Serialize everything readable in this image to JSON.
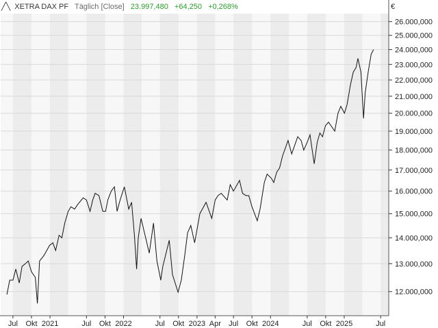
{
  "header": {
    "name": "XETRA DAX PF",
    "mode": "Täglich [Close]",
    "last": "23.997,480",
    "change": "+64,250",
    "change_pct": "+0,268%"
  },
  "colors": {
    "line": "#111111",
    "positive": "#2e9b2e",
    "band_light": "#f7f7f7",
    "band_dark": "#ececec",
    "grid": "#d8d8d8"
  },
  "chart_data": {
    "type": "line",
    "series": [
      {
        "values": [
          [
            "2020-06-01",
            11.9
          ],
          [
            "2020-06-15",
            12.4
          ],
          [
            "2020-07-01",
            12.4
          ],
          [
            "2020-07-15",
            12.8
          ],
          [
            "2020-08-01",
            12.3
          ],
          [
            "2020-08-15",
            12.9
          ],
          [
            "2020-09-01",
            13.0
          ],
          [
            "2020-09-15",
            13.1
          ],
          [
            "2020-10-01",
            12.7
          ],
          [
            "2020-10-20",
            12.5
          ],
          [
            "2020-10-30",
            11.6
          ],
          [
            "2020-11-10",
            13.1
          ],
          [
            "2020-12-01",
            13.3
          ],
          [
            "2020-12-30",
            13.7
          ],
          [
            "2021-01-15",
            13.8
          ],
          [
            "2021-01-29",
            13.5
          ],
          [
            "2021-02-15",
            14.1
          ],
          [
            "2021-03-01",
            14.0
          ],
          [
            "2021-03-15",
            14.6
          ],
          [
            "2021-04-01",
            15.1
          ],
          [
            "2021-04-15",
            15.3
          ],
          [
            "2021-05-03",
            15.2
          ],
          [
            "2021-05-18",
            15.4
          ],
          [
            "2021-06-15",
            15.7
          ],
          [
            "2021-07-01",
            15.6
          ],
          [
            "2021-07-19",
            15.1
          ],
          [
            "2021-08-01",
            15.6
          ],
          [
            "2021-08-13",
            15.9
          ],
          [
            "2021-09-01",
            15.8
          ],
          [
            "2021-09-20",
            15.1
          ],
          [
            "2021-10-04",
            15.1
          ],
          [
            "2021-10-15",
            15.6
          ],
          [
            "2021-11-01",
            16.0
          ],
          [
            "2021-11-17",
            16.2
          ],
          [
            "2021-11-30",
            15.1
          ],
          [
            "2021-12-15",
            15.6
          ],
          [
            "2022-01-05",
            16.2
          ],
          [
            "2022-01-27",
            15.2
          ],
          [
            "2022-02-10",
            15.5
          ],
          [
            "2022-02-24",
            14.1
          ],
          [
            "2022-03-07",
            12.8
          ],
          [
            "2022-03-15",
            14.0
          ],
          [
            "2022-03-29",
            14.8
          ],
          [
            "2022-04-15",
            14.2
          ],
          [
            "2022-05-09",
            13.4
          ],
          [
            "2022-05-30",
            14.6
          ],
          [
            "2022-06-16",
            13.1
          ],
          [
            "2022-07-05",
            12.4
          ],
          [
            "2022-07-15",
            12.9
          ],
          [
            "2022-08-16",
            13.9
          ],
          [
            "2022-09-01",
            12.6
          ],
          [
            "2022-09-29",
            11.98
          ],
          [
            "2022-10-15",
            12.4
          ],
          [
            "2022-11-01",
            13.3
          ],
          [
            "2022-11-15",
            14.2
          ],
          [
            "2022-12-01",
            14.5
          ],
          [
            "2022-12-20",
            13.8
          ],
          [
            "2023-01-15",
            15.0
          ],
          [
            "2023-02-15",
            15.5
          ],
          [
            "2023-03-15",
            14.8
          ],
          [
            "2023-04-01",
            15.6
          ],
          [
            "2023-04-15",
            15.8
          ],
          [
            "2023-05-01",
            15.9
          ],
          [
            "2023-05-31",
            15.6
          ],
          [
            "2023-06-15",
            16.3
          ],
          [
            "2023-07-01",
            16.0
          ],
          [
            "2023-07-31",
            16.5
          ],
          [
            "2023-08-15",
            15.9
          ],
          [
            "2023-09-01",
            15.8
          ],
          [
            "2023-09-15",
            15.8
          ],
          [
            "2023-10-01",
            15.3
          ],
          [
            "2023-10-27",
            14.7
          ],
          [
            "2023-11-10",
            15.2
          ],
          [
            "2023-12-01",
            16.4
          ],
          [
            "2023-12-15",
            16.8
          ],
          [
            "2024-01-05",
            16.6
          ],
          [
            "2024-01-17",
            16.4
          ],
          [
            "2024-02-01",
            16.9
          ],
          [
            "2024-02-15",
            17.1
          ],
          [
            "2024-03-01",
            17.7
          ],
          [
            "2024-03-28",
            18.5
          ],
          [
            "2024-04-15",
            17.8
          ],
          [
            "2024-05-15",
            18.7
          ],
          [
            "2024-06-01",
            18.5
          ],
          [
            "2024-06-14",
            18.0
          ],
          [
            "2024-07-01",
            18.4
          ],
          [
            "2024-07-15",
            18.8
          ],
          [
            "2024-08-05",
            17.3
          ],
          [
            "2024-08-20",
            18.4
          ],
          [
            "2024-09-02",
            18.9
          ],
          [
            "2024-09-15",
            18.7
          ],
          [
            "2024-09-30",
            19.3
          ],
          [
            "2024-10-15",
            19.5
          ],
          [
            "2024-11-15",
            19.0
          ],
          [
            "2024-12-01",
            20.0
          ],
          [
            "2024-12-15",
            20.4
          ],
          [
            "2025-01-02",
            20.0
          ],
          [
            "2025-01-15",
            20.5
          ],
          [
            "2025-02-01",
            21.7
          ],
          [
            "2025-02-15",
            22.5
          ],
          [
            "2025-03-01",
            22.8
          ],
          [
            "2025-03-10",
            23.4
          ],
          [
            "2025-03-25",
            22.5
          ],
          [
            "2025-04-07",
            19.7
          ],
          [
            "2025-04-15",
            21.2
          ],
          [
            "2025-05-01",
            22.6
          ],
          [
            "2025-05-15",
            23.7
          ],
          [
            "2025-05-27",
            24.0
          ]
        ]
      }
    ],
    "y_unit": "€",
    "y_ticks": [
      "12.000,000",
      "13.000,000",
      "14.000,000",
      "15.000,000",
      "16.000,000",
      "17.000,000",
      "18.000,000",
      "19.000,000",
      "20.000,000",
      "21.000,000",
      "22.000,000",
      "23.000,000",
      "24.000,000",
      "25.000,000",
      "26.000,000"
    ],
    "y_tick_values": [
      12,
      13,
      14,
      15,
      16,
      17,
      18,
      19,
      20,
      21,
      22,
      23,
      24,
      25,
      26
    ],
    "y_scale": "log",
    "y_range": [
      11.2,
      26.6
    ],
    "x_range": [
      "2020-05-01",
      "2025-08-10"
    ],
    "x_ticks": [
      {
        "label": "Jul",
        "date": "2020-07-01"
      },
      {
        "label": "Okt",
        "date": "2020-10-01"
      },
      {
        "label": "2021",
        "date": "2021-01-01"
      },
      {
        "label": "Jul",
        "date": "2021-07-01"
      },
      {
        "label": "Okt",
        "date": "2021-10-01"
      },
      {
        "label": "2022",
        "date": "2022-01-01"
      },
      {
        "label": "Jul",
        "date": "2022-07-01"
      },
      {
        "label": "Okt",
        "date": "2022-10-01"
      },
      {
        "label": "2023",
        "date": "2023-01-01"
      },
      {
        "label": "Apr",
        "date": "2023-04-01"
      },
      {
        "label": "Jul",
        "date": "2023-07-01"
      },
      {
        "label": "Okt",
        "date": "2023-10-01"
      },
      {
        "label": "2024",
        "date": "2024-01-01"
      },
      {
        "label": "Jul",
        "date": "2024-07-01"
      },
      {
        "label": "Okt",
        "date": "2024-10-01"
      },
      {
        "label": "2025",
        "date": "2025-01-01"
      },
      {
        "label": "Jul",
        "date": "2025-07-01"
      }
    ],
    "grid": true,
    "legend": "none"
  }
}
